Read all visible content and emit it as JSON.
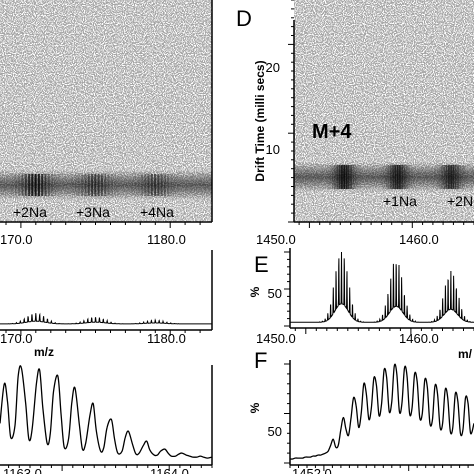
{
  "chart_data": [
    {
      "id": "left-top",
      "type": "heatmap",
      "panel_letter": "",
      "xlabel": "",
      "ylabel": "",
      "x_ticks": [
        "170.0",
        "1180.0"
      ],
      "annotations": [
        "+2Na",
        "+3Na",
        "+4Na"
      ],
      "band_centers": [
        1171.0,
        1175.0,
        1179.0
      ],
      "band_strength": [
        1.0,
        0.55,
        0.45
      ],
      "xlim": [
        1168.6,
        1182.8
      ],
      "drift_center": 6.6
    },
    {
      "id": "left-middle",
      "type": "line",
      "panel_letter": "",
      "xlabel": "m/z",
      "ylabel": "",
      "x_ticks": [
        "170.0",
        "1180.0"
      ],
      "xlim": [
        1168.6,
        1182.8
      ],
      "ylim": [
        0,
        100
      ],
      "peak_centers": [
        1171.0,
        1175.0,
        1179.0
      ],
      "peak_heights": [
        14,
        9,
        5
      ],
      "baseline": 4
    },
    {
      "id": "left-bottom",
      "type": "line",
      "panel_letter": "",
      "xlabel": "m/z",
      "ylabel": "",
      "x_ticks": [
        "1163.0",
        "1164.0"
      ],
      "xlim": [
        1162.42,
        1164.4
      ],
      "ylim": [
        0,
        100
      ],
      "x": [
        1162.42,
        1162.46,
        1162.49,
        1162.52,
        1162.56,
        1162.59,
        1162.62,
        1162.66,
        1162.69,
        1162.72,
        1162.76,
        1162.79,
        1162.82,
        1162.86,
        1162.89,
        1162.92,
        1162.96,
        1162.99,
        1163.02,
        1163.06,
        1163.09,
        1163.12,
        1163.16,
        1163.19,
        1163.22,
        1163.26,
        1163.29,
        1163.32,
        1163.36,
        1163.39,
        1163.42,
        1163.46,
        1163.49,
        1163.52,
        1163.56,
        1163.59,
        1163.62,
        1163.66,
        1163.69,
        1163.72,
        1163.76,
        1163.79,
        1163.82,
        1163.86,
        1163.89,
        1163.92,
        1163.96,
        1163.99,
        1164.02,
        1164.06,
        1164.09,
        1164.12,
        1164.16,
        1164.19,
        1164.22,
        1164.26,
        1164.29,
        1164.32,
        1164.36,
        1164.4
      ],
      "y": [
        40,
        80,
        62,
        26,
        38,
        88,
        96,
        60,
        24,
        34,
        80,
        94,
        56,
        20,
        30,
        72,
        88,
        50,
        16,
        24,
        60,
        76,
        40,
        14,
        20,
        48,
        60,
        32,
        12,
        16,
        36,
        44,
        24,
        10,
        12,
        26,
        32,
        18,
        9,
        10,
        18,
        22,
        13,
        8,
        8,
        12,
        14,
        10,
        7,
        7,
        9,
        10,
        8,
        7,
        6,
        6,
        7,
        6,
        5,
        6
      ]
    },
    {
      "id": "D",
      "type": "heatmap",
      "panel_letter": "D",
      "xlabel": "",
      "ylabel": "Drift Time (milli secs)",
      "y_ticks": [
        "10",
        "20"
      ],
      "y_tick_values": [
        10,
        20
      ],
      "ylim": [
        0,
        25
      ],
      "x_ticks": [
        "1450.0",
        "1460.0"
      ],
      "xlim": [
        1448.5,
        1466.0
      ],
      "annotations": [
        "M+4",
        "+1Na",
        "+2N"
      ],
      "band_centers": [
        1453.4,
        1458.6,
        1463.8
      ],
      "band_strength": [
        1.0,
        0.9,
        0.8
      ],
      "drift_center": 6.6
    },
    {
      "id": "E",
      "type": "line",
      "panel_letter": "E",
      "xlabel": "m/",
      "ylabel": "%",
      "y_ticks": [
        "50"
      ],
      "y_tick_values": [
        50
      ],
      "ylim": [
        0,
        100
      ],
      "x_ticks": [
        "1450.0",
        "1460.0"
      ],
      "xlim": [
        1448.5,
        1466.0
      ],
      "peak_centers": [
        1453.4,
        1458.6,
        1463.8
      ],
      "peak_heights": [
        100,
        86,
        70
      ],
      "baseline": 5
    },
    {
      "id": "F",
      "type": "line",
      "panel_letter": "F",
      "xlabel": "",
      "ylabel": "%",
      "y_ticks": [
        "50"
      ],
      "y_tick_values": [
        50
      ],
      "ylim": [
        0,
        100
      ],
      "x_ticks": [
        "1452.0"
      ],
      "xlim": [
        1451.6,
        1453.77
      ],
      "x": [
        1451.6,
        1451.63,
        1451.66,
        1451.69,
        1451.72,
        1451.75,
        1451.78,
        1451.81,
        1451.84,
        1451.87,
        1451.9,
        1451.93,
        1451.96,
        1451.99,
        1452.02,
        1452.05,
        1452.08,
        1452.11,
        1452.14,
        1452.17,
        1452.2,
        1452.23,
        1452.26,
        1452.29,
        1452.32,
        1452.35,
        1452.38,
        1452.41,
        1452.44,
        1452.47,
        1452.5,
        1452.53,
        1452.56,
        1452.59,
        1452.62,
        1452.65,
        1452.68,
        1452.71,
        1452.74,
        1452.77,
        1452.8,
        1452.83,
        1452.86,
        1452.89,
        1452.92,
        1452.95,
        1452.98,
        1453.01,
        1453.04,
        1453.07,
        1453.1,
        1453.13,
        1453.16,
        1453.19,
        1453.22,
        1453.25,
        1453.28,
        1453.31,
        1453.34,
        1453.37,
        1453.4,
        1453.43,
        1453.46,
        1453.49,
        1453.52,
        1453.55,
        1453.58,
        1453.61,
        1453.64,
        1453.67,
        1453.7,
        1453.73,
        1453.77
      ],
      "y": [
        4,
        4,
        5,
        5,
        5,
        5,
        6,
        6,
        6,
        7,
        7,
        8,
        8,
        9,
        10,
        12,
        18,
        24,
        16,
        18,
        34,
        46,
        34,
        28,
        46,
        66,
        58,
        36,
        50,
        80,
        70,
        44,
        56,
        86,
        78,
        48,
        60,
        94,
        86,
        52,
        62,
        98,
        90,
        52,
        60,
        96,
        88,
        50,
        56,
        90,
        82,
        46,
        50,
        84,
        76,
        40,
        44,
        78,
        70,
        36,
        40,
        74,
        66,
        32,
        36,
        70,
        62,
        30,
        34,
        66,
        60,
        30,
        40
      ]
    }
  ]
}
